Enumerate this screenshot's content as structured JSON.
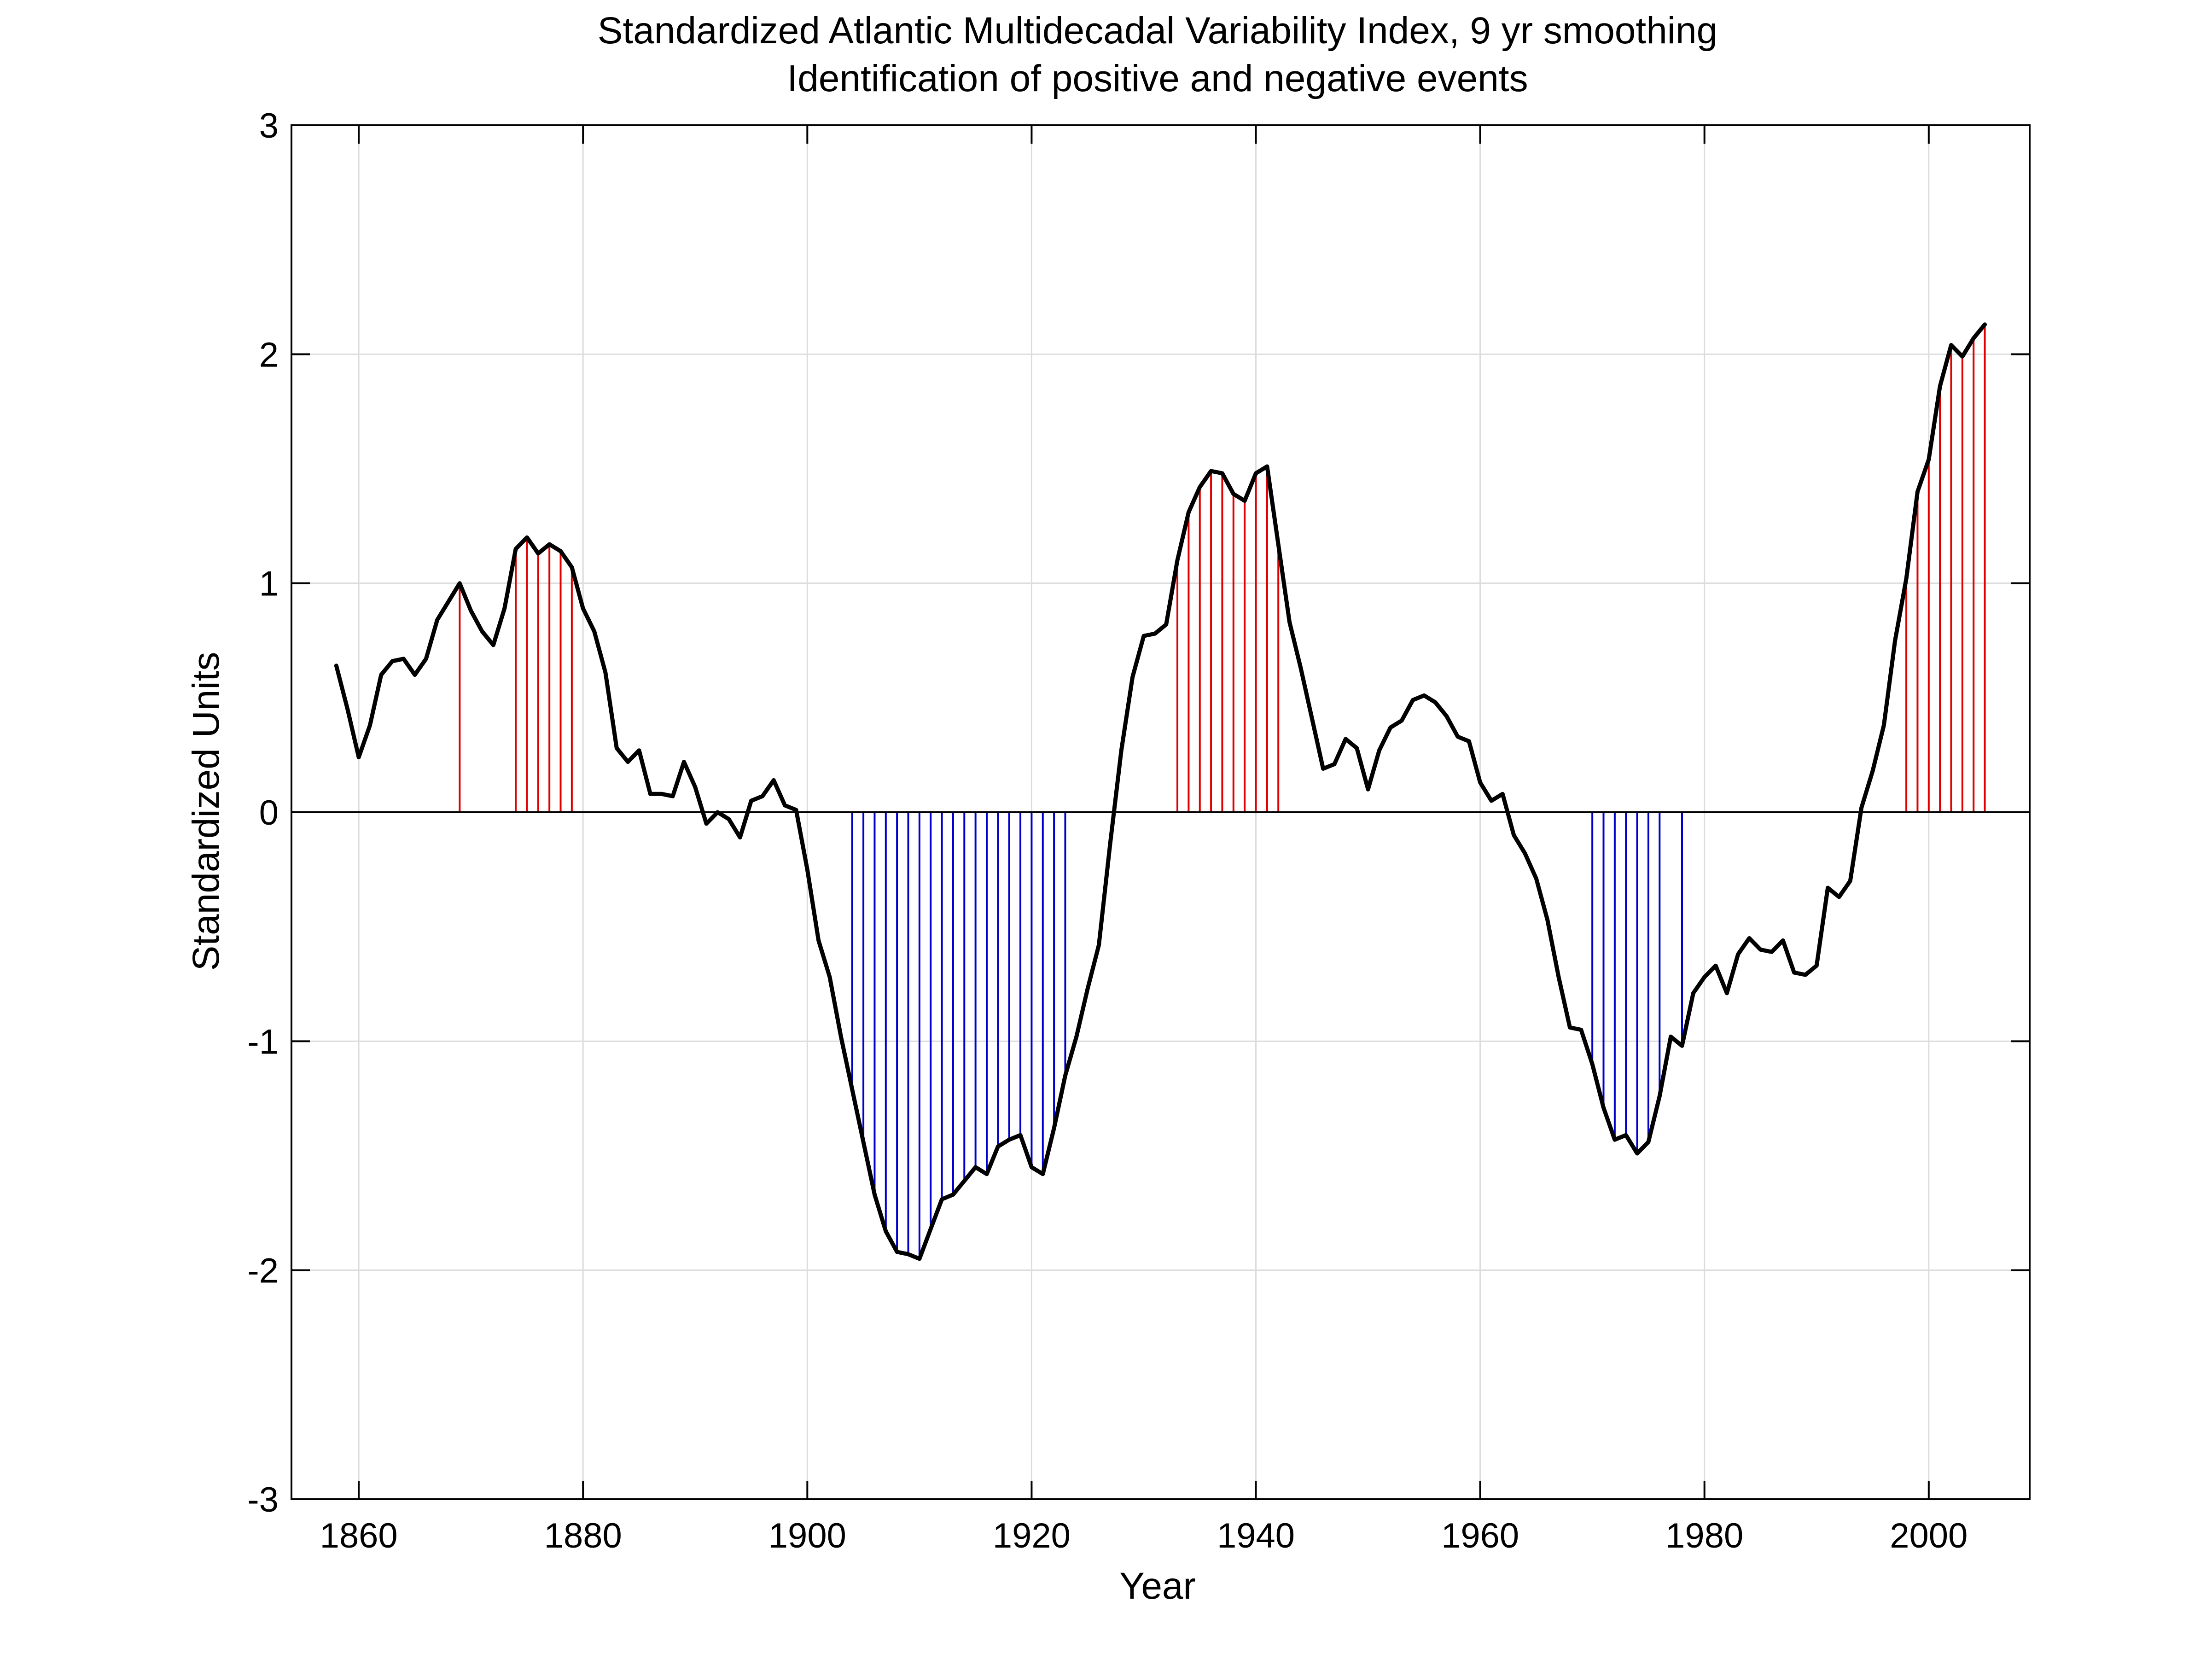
{
  "chart_data": {
    "type": "line",
    "title": "Standardized Atlantic Multidecadal Variability Index, 9 yr smoothing",
    "subtitle": "Identification of positive and negative events",
    "xlabel": "Year",
    "ylabel": "Standardized Units",
    "xlim": [
      1854,
      2009
    ],
    "ylim": [
      -3,
      3
    ],
    "xticks": [
      1860,
      1880,
      1900,
      1920,
      1940,
      1960,
      1980,
      2000
    ],
    "yticks": [
      -3,
      -2,
      -1,
      0,
      1,
      2,
      3
    ],
    "xtick_labels": [
      "1860",
      "1880",
      "1900",
      "1920",
      "1940",
      "1960",
      "1980",
      "2000"
    ],
    "ytick_labels": [
      "-3",
      "-2",
      "-1",
      "0",
      "1",
      "2",
      "3"
    ],
    "grid": true,
    "colors": {
      "line": "#000000",
      "positive": "#e00000",
      "negative": "#0000cc",
      "grid": "#dcdcdc"
    },
    "event_threshold": 1.0,
    "series": [
      {
        "x_start": 1858,
        "x_step": 1,
        "values": [
          0.64,
          0.45,
          0.24,
          0.38,
          0.6,
          0.66,
          0.67,
          0.6,
          0.67,
          0.84,
          0.92,
          1.0,
          0.88,
          0.79,
          0.73,
          0.89,
          1.15,
          1.2,
          1.13,
          1.17,
          1.14,
          1.07,
          0.89,
          0.79,
          0.61,
          0.28,
          0.22,
          0.27,
          0.08,
          0.08,
          0.07,
          0.22,
          0.11,
          -0.05,
          0.0,
          -0.03,
          -0.11,
          0.05,
          0.07,
          0.14,
          0.03,
          0.01,
          -0.25,
          -0.56,
          -0.72,
          -0.98,
          -1.21,
          -1.44,
          -1.67,
          -1.83,
          -1.92,
          -1.93,
          -1.95,
          -1.82,
          -1.69,
          -1.67,
          -1.61,
          -1.55,
          -1.58,
          -1.46,
          -1.43,
          -1.41,
          -1.55,
          -1.58,
          -1.38,
          -1.15,
          -0.98,
          -0.77,
          -0.58,
          -0.14,
          0.27,
          0.59,
          0.77,
          0.78,
          0.82,
          1.1,
          1.31,
          1.42,
          1.49,
          1.48,
          1.39,
          1.36,
          1.48,
          1.51,
          1.17,
          0.83,
          0.63,
          0.41,
          0.19,
          0.21,
          0.32,
          0.28,
          0.1,
          0.27,
          0.37,
          0.4,
          0.49,
          0.51,
          0.48,
          0.42,
          0.33,
          0.31,
          0.13,
          0.05,
          0.08,
          -0.1,
          -0.18,
          -0.29,
          -0.47,
          -0.72,
          -0.94,
          -0.95,
          -1.1,
          -1.29,
          -1.43,
          -1.41,
          -1.49,
          -1.44,
          -1.24,
          -0.98,
          -1.02,
          -0.79,
          -0.72,
          -0.67,
          -0.79,
          -0.62,
          -0.55,
          -0.6,
          -0.61,
          -0.56,
          -0.7,
          -0.71,
          -0.67,
          -0.33,
          -0.37,
          -0.3,
          0.02,
          0.18,
          0.38,
          0.75,
          1.02,
          1.4,
          1.54,
          1.86,
          2.04,
          1.99,
          2.07,
          2.13
        ]
      }
    ]
  }
}
